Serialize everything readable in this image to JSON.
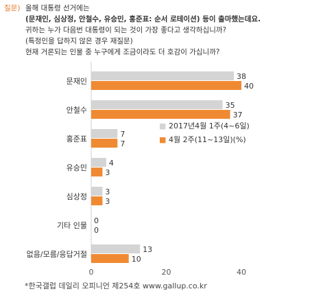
{
  "question": {
    "label": "질문)",
    "line1": "올해 대통령 선거에는",
    "line2": "(문재인, 심상정, 안철수, 유승민, 홍준표: 순서 로테이션) 등이 출마했는데요.",
    "line3": "귀하는 누가 다음번 대통령이 되는 것이 가장 좋다고 생각하십니까?",
    "line4": "(특정인을 답하지 않은 경우 재질문)",
    "line5": "현재 거론되는 인물 중 누구에게 조금이라도 더 호감이 가십니까?"
  },
  "chart_data": {
    "type": "bar",
    "orientation": "horizontal",
    "categories": [
      "문재인",
      "안철수",
      "홍준표",
      "유승민",
      "심상정",
      "기타 인물",
      "없음/모름/응답거절"
    ],
    "series": [
      {
        "name": "2017년4월 1주(4~6일)",
        "values": [
          38,
          35,
          7,
          4,
          3,
          0,
          13
        ],
        "color": "#d4d4d4"
      },
      {
        "name": "4월 2주(11~13일)(%)",
        "values": [
          40,
          37,
          7,
          3,
          3,
          0,
          10
        ],
        "color": "#f08a32"
      }
    ],
    "xlim": [
      0,
      40
    ],
    "xticks": [
      "0",
      "20",
      "40"
    ],
    "legend_markers": [
      "■",
      "■"
    ],
    "legend_position": "right",
    "grid": false
  },
  "footer": "*한국갤럽 데일리 오피니언 제254호 www.gallup.co.kr"
}
